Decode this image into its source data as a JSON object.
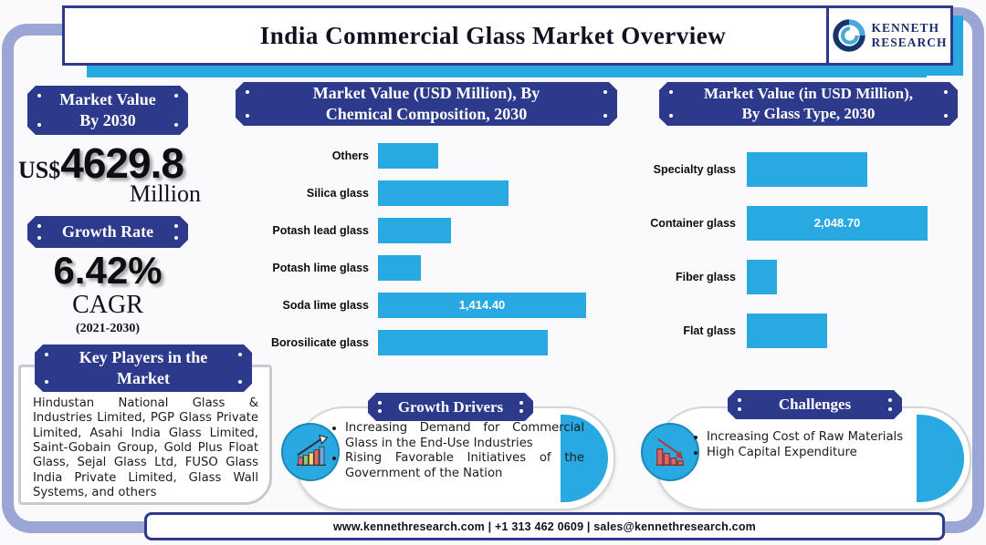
{
  "header": {
    "title": "India Commercial Glass Market Overview",
    "logo_text": "KENNETH\nRESEARCH"
  },
  "left_column": {
    "market_value_plaque": "Market Value\nBy 2030",
    "currency": "US$",
    "market_value": "4629.8",
    "unit": "Million",
    "growth_rate_plaque": "Growth Rate",
    "growth_rate": "6.42%",
    "growth_rate_label": "CAGR",
    "growth_rate_period": "(2021-2030)",
    "key_players_plaque": "Key Players in the\nMarket",
    "key_players_text": "Hindustan National Glass & Industries Limited, PGP Glass Private Limited, Asahi India Glass Limited, Saint-Gobain Group, Gold Plus Float Glass, Sejal Glass Ltd, FUSO Glass India Private Limited, Glass Wall Systems, and others"
  },
  "chart_data": [
    {
      "type": "bar",
      "orientation": "horizontal",
      "title": "Market Value (USD Million), By Chemical Composition, 2030",
      "title_lines": "Market Value (USD Million), By\nChemical Composition, 2030",
      "categories": [
        "Others",
        "Silica glass",
        "Potash lead glass",
        "Potash lime glass",
        "Soda lime glass",
        "Borosilicate glass"
      ],
      "values": [
        410,
        890,
        495,
        290,
        1414.4,
        1155
      ],
      "data_labels": [
        "",
        "",
        "",
        "",
        "1,414.40",
        ""
      ],
      "bar_color": "#29A9E1",
      "xlim": [
        0,
        1500
      ],
      "grid": false,
      "legend": false,
      "note": "only Soda lime glass value labeled; other values estimated from bar lengths"
    },
    {
      "type": "bar",
      "orientation": "horizontal",
      "title": "Market Value (in USD Million), By Glass Type, 2030",
      "title_lines": "Market Value (in USD Million),\nBy Glass Type, 2030",
      "categories": [
        "Specialty glass",
        "Container glass",
        "Fiber glass",
        "Flat glass"
      ],
      "values": [
        1365,
        2048.7,
        340,
        910
      ],
      "data_labels": [
        "",
        "2,048.70",
        "",
        ""
      ],
      "bar_color": "#29A9E1",
      "xlim": [
        0,
        2200
      ],
      "grid": false,
      "legend": false,
      "note": "only Container glass value labeled; other values estimated from bar lengths"
    }
  ],
  "growth_drivers": {
    "plaque": "Growth Drivers",
    "icon": "growth-bar-chart-up-arrow-icon",
    "bullets": [
      "Increasing Demand for Commercial Glass in the End-Use Industries",
      "Rising Favorable Initiatives of the Government of the Nation"
    ]
  },
  "challenges": {
    "plaque": "Challenges",
    "icon": "declining-bar-chart-down-arrow-icon",
    "bullets": [
      "Increasing Cost of Raw Materials",
      "High Capital Expenditure"
    ]
  },
  "footer": {
    "text": "www.kennethresearch.com | +1 313 462 0609 | sales@kennethresearch.com"
  },
  "colors": {
    "navy": "#2D3A8C",
    "cyan": "#29A9E1",
    "periwinkle": "#9BA6D4",
    "bar": "#29A9E1"
  }
}
